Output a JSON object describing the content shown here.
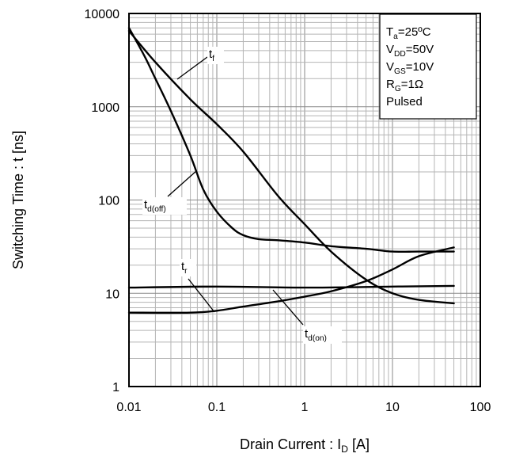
{
  "chart_data": {
    "type": "line",
    "xlabel": {
      "main": "Drain Current : I",
      "sub": "D",
      "tail": " [A]"
    },
    "ylabel": "Switching Time : t [ns]",
    "x_scale": "log",
    "y_scale": "log",
    "xlim": [
      0.01,
      100
    ],
    "ylim": [
      1,
      10000
    ],
    "grid": true,
    "x_tick_labels": [
      "0.01",
      "0.1",
      "1",
      "10",
      "100"
    ],
    "y_tick_labels": [
      "1",
      "10",
      "100",
      "1000",
      "10000"
    ],
    "conditions": [
      {
        "main": "T",
        "sub": "a",
        "tail": "=25ºC"
      },
      {
        "main": "V",
        "sub": "DD",
        "tail": "=50V"
      },
      {
        "main": "V",
        "sub": "GS",
        "tail": "=10V"
      },
      {
        "main": "R",
        "sub": "G",
        "tail": "=1Ω"
      },
      {
        "main": "Pulsed",
        "sub": "",
        "tail": ""
      }
    ],
    "series": [
      {
        "key": "tf",
        "label": {
          "main": "t",
          "sub": "f"
        },
        "x": [
          0.01,
          0.02,
          0.05,
          0.1,
          0.2,
          0.5,
          1,
          2,
          5,
          10,
          20,
          50
        ],
        "y": [
          6500,
          3000,
          1200,
          650,
          330,
          110,
          55,
          28,
          14,
          10,
          8.5,
          7.8
        ]
      },
      {
        "key": "tdoff",
        "label": {
          "main": "t",
          "sub": "d(off)"
        },
        "x": [
          0.01,
          0.015,
          0.02,
          0.03,
          0.05,
          0.07,
          0.1,
          0.15,
          0.2,
          0.3,
          0.5,
          1,
          2,
          5,
          10,
          20,
          50
        ],
        "y": [
          7000,
          3500,
          2000,
          900,
          300,
          130,
          75,
          50,
          42,
          38,
          37,
          35,
          32,
          30,
          28,
          28,
          28
        ]
      },
      {
        "key": "tdon",
        "label": {
          "main": "t",
          "sub": "d(on)"
        },
        "x": [
          0.01,
          0.1,
          1,
          10,
          50
        ],
        "y": [
          11.5,
          11.8,
          11.5,
          11.8,
          12
        ]
      },
      {
        "key": "tr",
        "label": {
          "main": "t",
          "sub": "r"
        },
        "x": [
          0.01,
          0.05,
          0.1,
          0.2,
          0.5,
          1,
          2,
          5,
          10,
          20,
          50
        ],
        "y": [
          6.2,
          6.2,
          6.5,
          7.2,
          8.2,
          9.2,
          10.5,
          13.5,
          18,
          25,
          31
        ]
      }
    ]
  }
}
